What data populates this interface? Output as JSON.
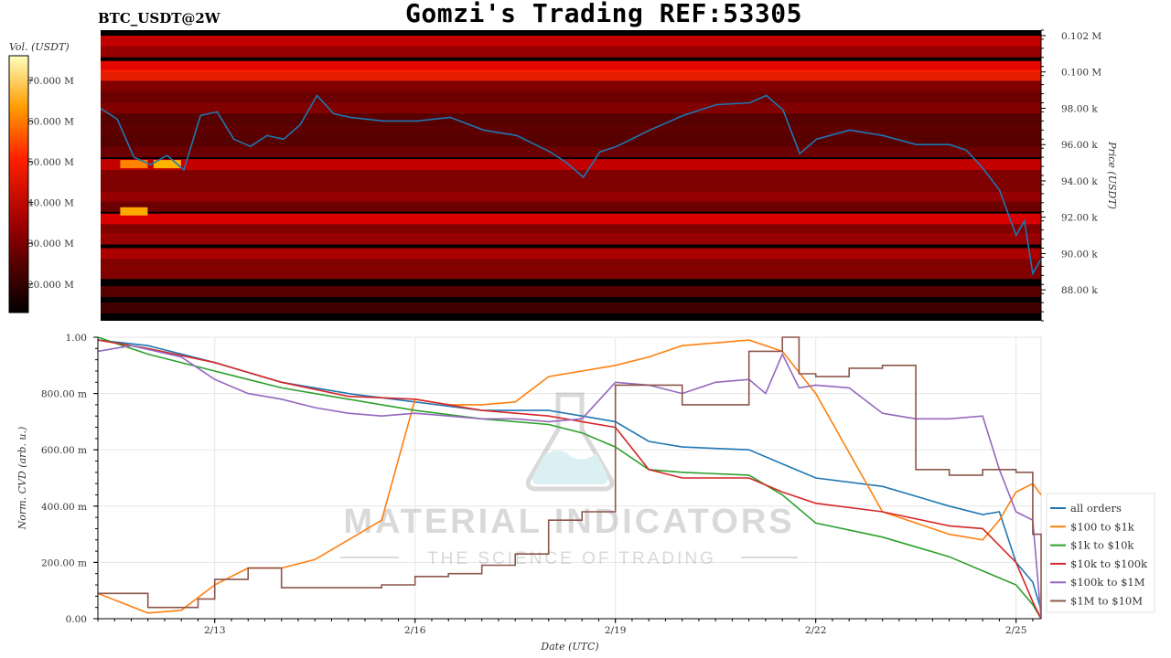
{
  "header": {
    "title": "Gomzi's Trading REF:53305",
    "pair": "BTC_USDT@2W"
  },
  "watermark": {
    "line1": "MATERIAL INDICATORS",
    "line2": "THE SCIENCE OF TRADING"
  },
  "colors": {
    "price_line": "#1f77b4",
    "heatmap_bg": "#000000"
  },
  "chart_data": [
    {
      "type": "heatmap",
      "colorbar": {
        "label": "Vol. (USDT)",
        "ticks": [
          "20.000 M",
          "30.000 M",
          "40.000 M",
          "50.000 M",
          "60.000 M",
          "70.000 M"
        ],
        "tick_values": [
          20,
          30,
          40,
          50,
          60,
          70
        ],
        "range": [
          13,
          76
        ],
        "colormap": "hot"
      },
      "y_axis": {
        "label": "Price (USDT)",
        "ticks": [
          "88.00 k",
          "90.00 k",
          "92.00 k",
          "94.00 k",
          "96.00 k",
          "98.00 k",
          "0.100 M",
          "0.102 M"
        ],
        "tick_values": [
          88000,
          90000,
          92000,
          94000,
          96000,
          98000,
          100000,
          102000
        ],
        "range": [
          86300,
          102300
        ]
      },
      "x_range": [
        "2025-02-11T06:00",
        "2025-02-25T09:00"
      ],
      "price_series": {
        "name": "price",
        "x": [
          "2025-02-11T06:00",
          "2025-02-11T12:00",
          "2025-02-11T18:00",
          "2025-02-12T00:00",
          "2025-02-12T06:00",
          "2025-02-12T12:00",
          "2025-02-12T18:00",
          "2025-02-13T00:00",
          "2025-02-13T06:00",
          "2025-02-13T12:00",
          "2025-02-13T18:00",
          "2025-02-14T00:00",
          "2025-02-14T06:00",
          "2025-02-14T12:00",
          "2025-02-14T18:00",
          "2025-02-15T00:00",
          "2025-02-15T12:00",
          "2025-02-16T00:00",
          "2025-02-16T12:00",
          "2025-02-17T00:00",
          "2025-02-17T12:00",
          "2025-02-18T00:00",
          "2025-02-18T06:00",
          "2025-02-18T12:00",
          "2025-02-18T18:00",
          "2025-02-19T00:00",
          "2025-02-19T12:00",
          "2025-02-20T00:00",
          "2025-02-20T12:00",
          "2025-02-21T00:00",
          "2025-02-21T06:00",
          "2025-02-21T12:00",
          "2025-02-21T18:00",
          "2025-02-22T00:00",
          "2025-02-22T12:00",
          "2025-02-23T00:00",
          "2025-02-23T12:00",
          "2025-02-24T00:00",
          "2025-02-24T06:00",
          "2025-02-24T12:00",
          "2025-02-24T18:00",
          "2025-02-25T00:00",
          "2025-02-25T03:00",
          "2025-02-25T06:00",
          "2025-02-25T09:00"
        ],
        "y": [
          98000,
          97400,
          95300,
          94900,
          95400,
          94600,
          97600,
          97800,
          96300,
          95900,
          96500,
          96300,
          97100,
          98700,
          97700,
          97500,
          97300,
          97300,
          97500,
          96800,
          96500,
          95600,
          95000,
          94200,
          95600,
          95900,
          96800,
          97600,
          98200,
          98300,
          98700,
          97900,
          95500,
          96300,
          96800,
          96500,
          96000,
          96000,
          95700,
          94700,
          93500,
          91000,
          91800,
          88900,
          89700
        ]
      },
      "bands": [
        {
          "price": 101700,
          "intensity": 0.45
        },
        {
          "price": 101100,
          "intensity": 0.35
        },
        {
          "price": 100300,
          "intensity": 0.55
        },
        {
          "price": 99800,
          "intensity": 0.6
        },
        {
          "price": 99200,
          "intensity": 0.3
        },
        {
          "price": 98600,
          "intensity": 0.25
        },
        {
          "price": 98000,
          "intensity": 0.3
        },
        {
          "price": 97400,
          "intensity": 0.2
        },
        {
          "price": 96800,
          "intensity": 0.22
        },
        {
          "price": 96200,
          "intensity": 0.2
        },
        {
          "price": 95600,
          "intensity": 0.25
        },
        {
          "price": 94900,
          "intensity": 0.45
        },
        {
          "price": 94300,
          "intensity": 0.3
        },
        {
          "price": 93700,
          "intensity": 0.3
        },
        {
          "price": 93100,
          "intensity": 0.35
        },
        {
          "price": 92600,
          "intensity": 0.25
        },
        {
          "price": 91900,
          "intensity": 0.5
        },
        {
          "price": 91300,
          "intensity": 0.3
        },
        {
          "price": 90800,
          "intensity": 0.35
        },
        {
          "price": 90000,
          "intensity": 0.4
        },
        {
          "price": 89400,
          "intensity": 0.3
        },
        {
          "price": 88900,
          "intensity": 0.3
        },
        {
          "price": 87900,
          "intensity": 0.2
        },
        {
          "price": 87000,
          "intensity": 0.15
        }
      ],
      "hot_spots": [
        {
          "x": "2025-02-11T18:00",
          "price": 94900,
          "value": 51
        },
        {
          "x": "2025-02-12T06:00",
          "price": 94900,
          "value": 56
        },
        {
          "x": "2025-02-11T18:00",
          "price": 92300,
          "value": 55
        }
      ]
    },
    {
      "type": "line",
      "xlabel": "Date (UTC)",
      "ylabel": "Norm. CVD (arb. u.)",
      "x_ticks": [
        "2/13",
        "2/16",
        "2/19",
        "2/22",
        "2/25"
      ],
      "x_tick_values": [
        "2025-02-13",
        "2025-02-16",
        "2025-02-19",
        "2025-02-22",
        "2025-02-25"
      ],
      "x_range": [
        "2025-02-11T06:00",
        "2025-02-25T09:00"
      ],
      "y_ticks": [
        "0.00",
        "200.00 m",
        "400.00 m",
        "600.00 m",
        "800.00 m",
        "1.00"
      ],
      "y_tick_values": [
        0,
        0.2,
        0.4,
        0.6,
        0.8,
        1.0
      ],
      "ylim": [
        0,
        1
      ],
      "grid": true,
      "legend_position": "right",
      "series": [
        {
          "name": "all orders",
          "color": "#1f77b4",
          "x": [
            "2025-02-11T06:00",
            "2025-02-12T00:00",
            "2025-02-13T00:00",
            "2025-02-14T00:00",
            "2025-02-15T00:00",
            "2025-02-16T00:00",
            "2025-02-17T00:00",
            "2025-02-18T00:00",
            "2025-02-18T12:00",
            "2025-02-19T00:00",
            "2025-02-19T12:00",
            "2025-02-20T00:00",
            "2025-02-21T00:00",
            "2025-02-21T12:00",
            "2025-02-22T00:00",
            "2025-02-23T00:00",
            "2025-02-24T00:00",
            "2025-02-24T12:00",
            "2025-02-24T18:00",
            "2025-02-25T00:00",
            "2025-02-25T06:00",
            "2025-02-25T09:00"
          ],
          "y": [
            0.99,
            0.97,
            0.91,
            0.84,
            0.8,
            0.77,
            0.74,
            0.74,
            0.72,
            0.7,
            0.63,
            0.61,
            0.6,
            0.55,
            0.5,
            0.47,
            0.4,
            0.37,
            0.38,
            0.2,
            0.13,
            0.03
          ]
        },
        {
          "name": "$100 to $1k",
          "color": "#ff7f0e",
          "x": [
            "2025-02-11T06:00",
            "2025-02-12T00:00",
            "2025-02-12T12:00",
            "2025-02-13T00:00",
            "2025-02-13T12:00",
            "2025-02-14T00:00",
            "2025-02-14T12:00",
            "2025-02-15T00:00",
            "2025-02-15T12:00",
            "2025-02-16T00:00",
            "2025-02-16T12:00",
            "2025-02-17T00:00",
            "2025-02-17T12:00",
            "2025-02-18T00:00",
            "2025-02-18T12:00",
            "2025-02-19T00:00",
            "2025-02-19T12:00",
            "2025-02-20T00:00",
            "2025-02-20T12:00",
            "2025-02-21T00:00",
            "2025-02-21T12:00",
            "2025-02-22T00:00",
            "2025-02-23T00:00",
            "2025-02-23T12:00",
            "2025-02-24T00:00",
            "2025-02-24T12:00",
            "2025-02-24T18:00",
            "2025-02-25T00:00",
            "2025-02-25T06:00",
            "2025-02-25T09:00"
          ],
          "y": [
            0.09,
            0.02,
            0.03,
            0.12,
            0.18,
            0.18,
            0.21,
            0.28,
            0.35,
            0.78,
            0.76,
            0.76,
            0.77,
            0.86,
            0.88,
            0.9,
            0.93,
            0.97,
            0.98,
            0.99,
            0.95,
            0.8,
            0.38,
            0.34,
            0.3,
            0.28,
            0.35,
            0.45,
            0.48,
            0.44
          ]
        },
        {
          "name": "$1k to $10k",
          "color": "#2ca02c",
          "x": [
            "2025-02-11T06:00",
            "2025-02-12T00:00",
            "2025-02-13T00:00",
            "2025-02-14T00:00",
            "2025-02-15T00:00",
            "2025-02-16T00:00",
            "2025-02-17T00:00",
            "2025-02-18T00:00",
            "2025-02-18T12:00",
            "2025-02-19T00:00",
            "2025-02-19T12:00",
            "2025-02-20T00:00",
            "2025-02-21T00:00",
            "2025-02-21T12:00",
            "2025-02-22T00:00",
            "2025-02-23T00:00",
            "2025-02-24T00:00",
            "2025-02-24T12:00",
            "2025-02-25T00:00",
            "2025-02-25T06:00",
            "2025-02-25T09:00"
          ],
          "y": [
            1.0,
            0.94,
            0.88,
            0.82,
            0.78,
            0.74,
            0.71,
            0.69,
            0.66,
            0.61,
            0.53,
            0.52,
            0.51,
            0.44,
            0.34,
            0.29,
            0.22,
            0.17,
            0.12,
            0.05,
            0.0
          ]
        },
        {
          "name": "$10k to $100k",
          "color": "#d62728",
          "x": [
            "2025-02-11T06:00",
            "2025-02-12T00:00",
            "2025-02-13T00:00",
            "2025-02-14T00:00",
            "2025-02-15T00:00",
            "2025-02-16T00:00",
            "2025-02-17T00:00",
            "2025-02-18T00:00",
            "2025-02-18T12:00",
            "2025-02-19T00:00",
            "2025-02-19T12:00",
            "2025-02-20T00:00",
            "2025-02-21T00:00",
            "2025-02-21T12:00",
            "2025-02-22T00:00",
            "2025-02-23T00:00",
            "2025-02-24T00:00",
            "2025-02-24T12:00",
            "2025-02-25T00:00",
            "2025-02-25T06:00",
            "2025-02-25T09:00"
          ],
          "y": [
            0.99,
            0.96,
            0.91,
            0.84,
            0.79,
            0.78,
            0.74,
            0.72,
            0.7,
            0.68,
            0.53,
            0.5,
            0.5,
            0.45,
            0.41,
            0.38,
            0.33,
            0.32,
            0.2,
            0.06,
            0.0
          ]
        },
        {
          "name": "$100k to $1M",
          "color": "#9467bd",
          "x": [
            "2025-02-11T06:00",
            "2025-02-11T18:00",
            "2025-02-12T12:00",
            "2025-02-13T00:00",
            "2025-02-13T12:00",
            "2025-02-14T00:00",
            "2025-02-14T12:00",
            "2025-02-15T00:00",
            "2025-02-15T12:00",
            "2025-02-16T00:00",
            "2025-02-16T12:00",
            "2025-02-17T00:00",
            "2025-02-17T12:00",
            "2025-02-18T00:00",
            "2025-02-18T12:00",
            "2025-02-19T00:00",
            "2025-02-19T12:00",
            "2025-02-20T00:00",
            "2025-02-20T12:00",
            "2025-02-21T00:00",
            "2025-02-21T06:00",
            "2025-02-21T12:00",
            "2025-02-21T18:00",
            "2025-02-22T00:00",
            "2025-02-22T12:00",
            "2025-02-23T00:00",
            "2025-02-23T12:00",
            "2025-02-24T00:00",
            "2025-02-24T12:00",
            "2025-02-24T18:00",
            "2025-02-25T00:00",
            "2025-02-25T06:00",
            "2025-02-25T09:00"
          ],
          "y": [
            0.95,
            0.97,
            0.93,
            0.85,
            0.8,
            0.78,
            0.75,
            0.73,
            0.72,
            0.73,
            0.72,
            0.71,
            0.71,
            0.7,
            0.71,
            0.84,
            0.83,
            0.8,
            0.84,
            0.85,
            0.8,
            0.94,
            0.82,
            0.83,
            0.82,
            0.73,
            0.71,
            0.71,
            0.72,
            0.53,
            0.38,
            0.35,
            0.0
          ]
        },
        {
          "name": "$1M to $10M",
          "color": "#8c564b",
          "step": true,
          "x": [
            "2025-02-11T06:00",
            "2025-02-11T12:00",
            "2025-02-12T00:00",
            "2025-02-12T18:00",
            "2025-02-13T00:00",
            "2025-02-13T12:00",
            "2025-02-14T00:00",
            "2025-02-15T00:00",
            "2025-02-15T12:00",
            "2025-02-16T00:00",
            "2025-02-16T12:00",
            "2025-02-17T00:00",
            "2025-02-17T12:00",
            "2025-02-18T00:00",
            "2025-02-18T12:00",
            "2025-02-19T00:00",
            "2025-02-19T12:00",
            "2025-02-20T00:00",
            "2025-02-20T12:00",
            "2025-02-21T00:00",
            "2025-02-21T12:00",
            "2025-02-21T18:00",
            "2025-02-22T00:00",
            "2025-02-22T12:00",
            "2025-02-23T00:00",
            "2025-02-23T12:00",
            "2025-02-24T00:00",
            "2025-02-24T12:00",
            "2025-02-25T00:00",
            "2025-02-25T06:00",
            "2025-02-25T09:00"
          ],
          "y": [
            0.09,
            0.09,
            0.04,
            0.07,
            0.14,
            0.18,
            0.11,
            0.11,
            0.12,
            0.15,
            0.16,
            0.19,
            0.23,
            0.35,
            0.38,
            0.83,
            0.83,
            0.76,
            0.76,
            0.95,
            1.0,
            0.87,
            0.86,
            0.89,
            0.9,
            0.53,
            0.51,
            0.53,
            0.52,
            0.3,
            0.0
          ]
        }
      ]
    }
  ]
}
